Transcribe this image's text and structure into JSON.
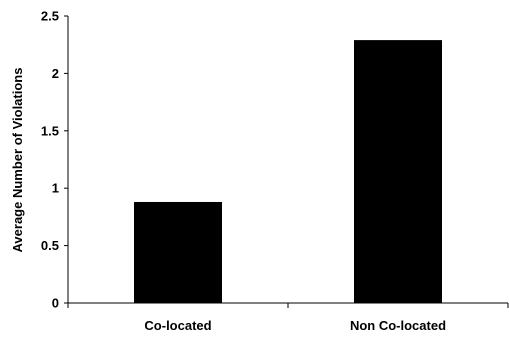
{
  "chart_data": {
    "type": "bar",
    "title": "",
    "xlabel": "",
    "ylabel": "Average Number of Violations",
    "categories": [
      "Co-located",
      "Non Co-located"
    ],
    "values": [
      0.88,
      2.29
    ],
    "ylim": [
      0,
      2.5
    ],
    "yticks": [
      0,
      0.5,
      1,
      1.5,
      2,
      2.5
    ],
    "ytick_labels": [
      "0",
      "0.5",
      "1",
      "1.5",
      "2",
      "2.5"
    ],
    "bar_color": "#000000",
    "grid": false,
    "legend": "none"
  }
}
